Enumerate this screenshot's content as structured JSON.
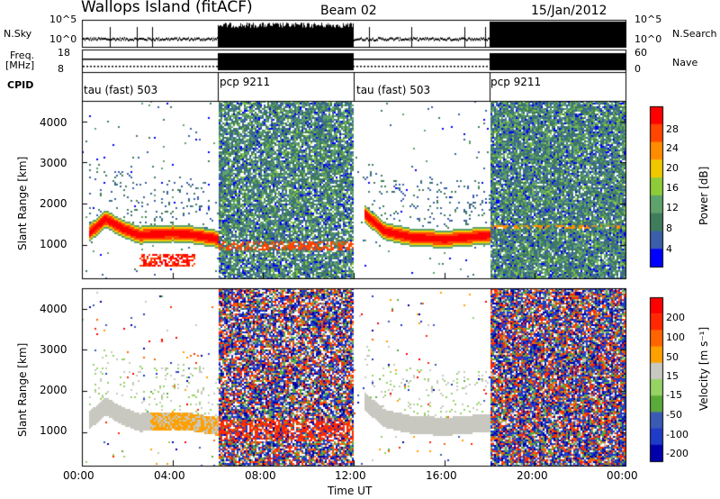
{
  "header": {
    "station": "Wallops Island (fitACF)",
    "beam": "Beam 02",
    "date": "15/Jan/2012"
  },
  "aux_labels": {
    "nsky": "N.Sky",
    "nsearch": "N.Search",
    "freq": "Freq.",
    "freq_unit": "[MHz]",
    "nave": "Nave",
    "cpid": "CPID",
    "nsky_ticks": [
      "10^5",
      "10^0"
    ],
    "nsearch_ticks": [
      "10^5",
      "10^0"
    ],
    "freq_ticks": [
      "18",
      "8"
    ],
    "nave_ticks": [
      "60",
      "0"
    ]
  },
  "colors": {
    "power": [
      "#0000ff",
      "#3a5fa8",
      "#3f7c5c",
      "#5fa36c",
      "#8ecb3a",
      "#f0c800",
      "#ff8c00",
      "#ff4500",
      "#ff0000"
    ],
    "velocity": [
      "#0000aa",
      "#1e3cc8",
      "#3a5ab4",
      "#5aaa3a",
      "#96d264",
      "#c8c8c0",
      "#ffa000",
      "#ff6400",
      "#ff2800",
      "#ff0000"
    ]
  },
  "chart_data": [
    {
      "type": "timeline",
      "panel": "N.Sky / N.Search",
      "x": [
        "00:00",
        "06:00",
        "12:00",
        "18:00",
        "24:00"
      ],
      "segments": [
        {
          "start": "00:00",
          "end": "06:00",
          "level": "low"
        },
        {
          "start": "06:00",
          "end": "12:00",
          "level": "high"
        },
        {
          "start": "12:00",
          "end": "18:00",
          "level": "low"
        },
        {
          "start": "18:00",
          "end": "24:00",
          "level": "full"
        }
      ]
    },
    {
      "type": "table",
      "panel": "CPID",
      "segments": [
        {
          "start": "00:00",
          "end": "06:00",
          "label": "tau (fast) 503"
        },
        {
          "start": "06:00",
          "end": "12:00",
          "label": "pcp 9211"
        },
        {
          "start": "12:00",
          "end": "18:00",
          "label": "tau (fast) 503"
        },
        {
          "start": "18:00",
          "end": "24:00",
          "label": "pcp 9211"
        }
      ]
    },
    {
      "type": "heatmap",
      "panel": "power",
      "ylabel": "Slant Range [km]",
      "yticks": [
        "1000",
        "2000",
        "3000",
        "4000"
      ],
      "ylim": [
        180,
        4500
      ],
      "colorbar": {
        "label": "Power [dB]",
        "ticks": [
          "4",
          "8",
          "12",
          "16",
          "20",
          "24",
          "28"
        ],
        "range": [
          0,
          32
        ]
      },
      "features": [
        {
          "name": "echo band",
          "times": [
            "00:00",
            "01:00",
            "02:30",
            "04:00",
            "06:00"
          ],
          "range_km": [
            1300,
            1650,
            1250,
            1300,
            1100
          ]
        },
        {
          "name": "echo band",
          "times": [
            "12:30",
            "14:00",
            "16:00",
            "18:00"
          ],
          "range_km": [
            1700,
            1250,
            1150,
            1200
          ]
        }
      ]
    },
    {
      "type": "heatmap",
      "panel": "velocity",
      "xlabel": "Time UT",
      "xticks": [
        "00:00",
        "04:00",
        "08:00",
        "12:00",
        "16:00",
        "20:00",
        "00:00"
      ],
      "ylabel": "Slant Range [km]",
      "yticks": [
        "1000",
        "2000",
        "3000",
        "4000"
      ],
      "ylim": [
        180,
        4500
      ],
      "colorbar": {
        "label": "Velocity [m s⁻¹]",
        "ticks": [
          "200",
          "100",
          "50",
          "15",
          "-15",
          "-50",
          "-100",
          "-200"
        ],
        "range": [
          -250,
          250
        ]
      }
    }
  ]
}
